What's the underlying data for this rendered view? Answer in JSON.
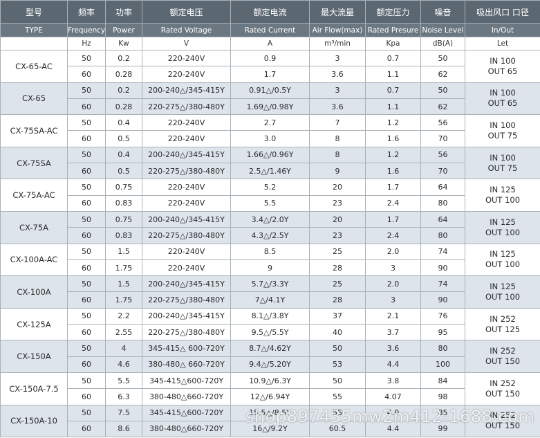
{
  "table": {
    "header_cn": [
      "型号",
      "频率",
      "功率",
      "额定电压",
      "额定电流",
      "最大流量",
      "额定压力",
      "噪音",
      "吸出风口 口径"
    ],
    "header_en": [
      "TYPE",
      "Frequency",
      "Power",
      "Rated Voltage",
      "Rated Current",
      "Air Flow(max)",
      "Rated Presure",
      "Noise Level",
      "In/Out"
    ],
    "units": [
      "Hz",
      "Kw",
      "V",
      "A",
      "m³/min",
      "Kpa",
      "dB(A)",
      "Let"
    ],
    "groups": [
      {
        "model": "CX-65-AC",
        "inout": [
          "IN 100",
          "OUT 65"
        ],
        "rows": [
          [
            "50",
            "0.2",
            "220-240V",
            "0.9",
            "3",
            "0.7",
            "50"
          ],
          [
            "60",
            "0.28",
            "220-240V",
            "1.7",
            "3.6",
            "1.1",
            "62"
          ]
        ]
      },
      {
        "model": "CX-65",
        "inout": [
          "IN 100",
          "OUT 65"
        ],
        "rows": [
          [
            "50",
            "0.2",
            "200-240△/345-415Y",
            "0.91△/0.5Y",
            "3",
            "0.7",
            "50"
          ],
          [
            "60",
            "0.28",
            "220-275△/380-480Y",
            "1.69△/0.98Y",
            "3.6",
            "1.1",
            "62"
          ]
        ]
      },
      {
        "model": "CX-75SA-AC",
        "inout": [
          "IN 100",
          "OUT 75"
        ],
        "rows": [
          [
            "50",
            "0.4",
            "220-240V",
            "2.7",
            "7",
            "1.2",
            "56"
          ],
          [
            "60",
            "0.5",
            "220-240V",
            "3.0",
            "8",
            "1.6",
            "70"
          ]
        ]
      },
      {
        "model": "CX-75SA",
        "inout": [
          "IN 100",
          "OUT 75"
        ],
        "rows": [
          [
            "50",
            "0.4",
            "200-240△/345-415Y",
            "1.66△/0.96Y",
            "8",
            "1.2",
            "56"
          ],
          [
            "60",
            "0.5",
            "220-275△/380-480Y",
            "2.5△/1.46Y",
            "9",
            "1.6",
            "70"
          ]
        ]
      },
      {
        "model": "CX-75A-AC",
        "inout": [
          "IN 125",
          "OUT 100"
        ],
        "rows": [
          [
            "50",
            "0.75",
            "220-240V",
            "5.2",
            "20",
            "1.7",
            "64"
          ],
          [
            "60",
            "0.83",
            "220-240V",
            "5.5",
            "23",
            "2.4",
            "80"
          ]
        ]
      },
      {
        "model": "CX-75A",
        "inout": [
          "IN 125",
          "OUT 100"
        ],
        "rows": [
          [
            "50",
            "0.75",
            "200-240△/345-415Y",
            "3.4△/2.0Y",
            "20",
            "1.7",
            "64"
          ],
          [
            "60",
            "0.83",
            "220-275△/380-480Y",
            "4.3△/2.5Y",
            "23",
            "2.4",
            "80"
          ]
        ]
      },
      {
        "model": "CX-100A-AC",
        "inout": [
          "IN 125",
          "OUT 100"
        ],
        "rows": [
          [
            "50",
            "1.5",
            "220-240V",
            "8.5",
            "25",
            "2.0",
            "74"
          ],
          [
            "60",
            "1.75",
            "220-240V",
            "9",
            "28",
            "3",
            "90"
          ]
        ]
      },
      {
        "model": "CX-100A",
        "inout": [
          "IN 125",
          "OUT 100"
        ],
        "rows": [
          [
            "50",
            "1.5",
            "200-240△/345-415Y",
            "5.7△/3.3Y",
            "25",
            "2.0",
            "74"
          ],
          [
            "60",
            "1.75",
            "220-275△/380-480Y",
            "7△/4.1Y",
            "28",
            "3",
            "90"
          ]
        ]
      },
      {
        "model": "CX-125A",
        "inout": [
          "IN 252",
          "OUT 125"
        ],
        "rows": [
          [
            "50",
            "2.2",
            "200-240△/345-415Y",
            "8.1△/3.8Y",
            "37",
            "2.1",
            "76"
          ],
          [
            "60",
            "2.55",
            "220-275△/380-480Y",
            "9.5△/5.5Y",
            "40",
            "3.7",
            "95"
          ]
        ]
      },
      {
        "model": "CX-150A",
        "inout": [
          "IN 252",
          "OUT 150"
        ],
        "rows": [
          [
            "50",
            "4",
            "345-415△ 600-720Y",
            "8.7△/4.62Y",
            "50",
            "3.6",
            "80"
          ],
          [
            "60",
            "4.6",
            "380-480△ 660-720Y",
            "9.4△/5.20Y",
            "53",
            "4.4",
            "100"
          ]
        ]
      },
      {
        "model": "CX-150A-7.5",
        "inout": [
          "IN 252",
          "OUT 150"
        ],
        "rows": [
          [
            "50",
            "5.5",
            "345-415△600-720Y",
            "10.9△/6.3Y",
            "50",
            "3.8",
            "84"
          ],
          [
            "60",
            "6.3",
            "380-480△660-720Y",
            "12△/6.94Y",
            "55",
            "4.07",
            "98"
          ]
        ]
      },
      {
        "model": "CX-150A-10",
        "inout": [
          "IN 252",
          "OUT 150"
        ],
        "rows": [
          [
            "50",
            "7.5",
            "345-415△600-720Y",
            "15.5△/8.5Y",
            "55",
            "4.0",
            "85"
          ],
          [
            "60",
            "8.6",
            "380-480△660-720Y",
            "16△/9.2Y",
            "60.5",
            "4.4",
            "99"
          ]
        ]
      }
    ]
  },
  "watermark": "shop897435mw2m412-1688.com"
}
